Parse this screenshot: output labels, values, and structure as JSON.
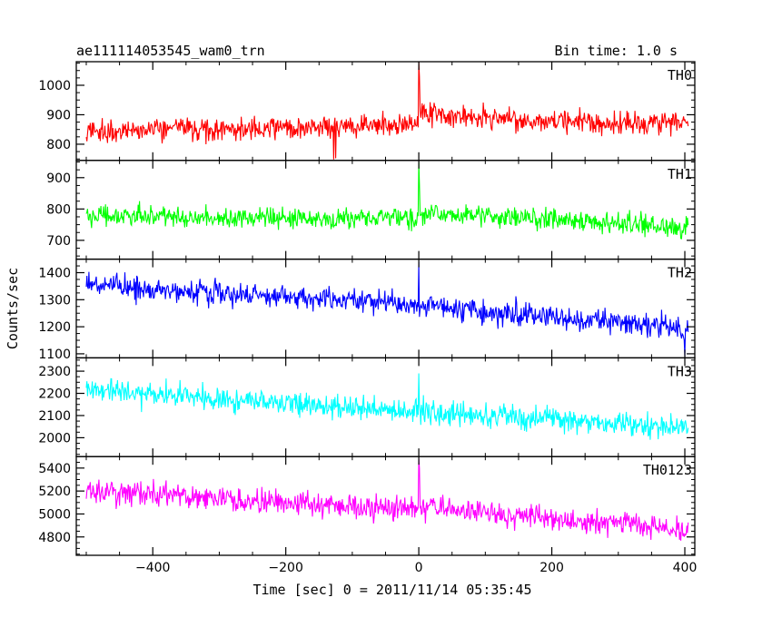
{
  "chart_data": {
    "type": "line",
    "title": "ae111114053545_wam0_trn",
    "subtitle": "Bin time: 1.0 s",
    "xlabel": "Time [sec] 0 = 2011/11/14 05:35:45",
    "ylabel": "Counts/sec",
    "xlim": [
      -515,
      415
    ],
    "x_range": [
      -500,
      405
    ],
    "x_ticks": [
      -400,
      -200,
      0,
      200,
      400
    ],
    "x_tick_labels": [
      "−400",
      "−200",
      "0",
      "200",
      "400"
    ],
    "grid": false,
    "panels": [
      {
        "name": "TH0",
        "color": "#ff0000",
        "ylim": [
          745,
          1080
        ],
        "y_ticks": [
          800,
          900,
          1000
        ],
        "y_tick_labels": [
          "800",
          "900",
          "1000"
        ],
        "noise": 38,
        "trend": [
          {
            "x": -500,
            "y": 845
          },
          {
            "x": -150,
            "y": 855
          },
          {
            "x": -2,
            "y": 868
          },
          {
            "x": 2,
            "y": 905
          },
          {
            "x": 150,
            "y": 880
          },
          {
            "x": 405,
            "y": 870
          }
        ],
        "spikes": [
          {
            "x": 0,
            "y": 1080
          },
          {
            "x": 1,
            "y": 1030
          },
          {
            "x": -128,
            "y": 748
          },
          {
            "x": -125,
            "y": 752
          }
        ]
      },
      {
        "name": "TH1",
        "color": "#00ff00",
        "ylim": [
          640,
          955
        ],
        "y_ticks": [
          700,
          800,
          900
        ],
        "y_tick_labels": [
          "700",
          "800",
          "900"
        ],
        "noise": 34,
        "trend": [
          {
            "x": -500,
            "y": 778
          },
          {
            "x": -2,
            "y": 768
          },
          {
            "x": 2,
            "y": 785
          },
          {
            "x": 405,
            "y": 742
          }
        ],
        "spikes": [
          {
            "x": 0,
            "y": 950
          },
          {
            "x": 1,
            "y": 880
          }
        ]
      },
      {
        "name": "TH2",
        "color": "#0000ff",
        "ylim": [
          1085,
          1450
        ],
        "y_ticks": [
          1100,
          1200,
          1300,
          1400
        ],
        "y_tick_labels": [
          "1100",
          "1200",
          "1300",
          "1400"
        ],
        "noise": 45,
        "trend": [
          {
            "x": -500,
            "y": 1355
          },
          {
            "x": -2,
            "y": 1285
          },
          {
            "x": 2,
            "y": 1275
          },
          {
            "x": 405,
            "y": 1195
          }
        ],
        "spikes": [
          {
            "x": 0,
            "y": 1440
          },
          {
            "x": 400,
            "y": 1090
          }
        ]
      },
      {
        "name": "TH3",
        "color": "#00ffff",
        "ylim": [
          1915,
          2360
        ],
        "y_ticks": [
          2000,
          2100,
          2200,
          2300
        ],
        "y_tick_labels": [
          "2000",
          "2100",
          "2200",
          "2300"
        ],
        "noise": 55,
        "trend": [
          {
            "x": -500,
            "y": 2215
          },
          {
            "x": 0,
            "y": 2120
          },
          {
            "x": 405,
            "y": 2040
          }
        ],
        "spikes": [
          {
            "x": 0,
            "y": 2290
          }
        ]
      },
      {
        "name": "TH0123",
        "color": "#ff00ff",
        "ylim": [
          4640,
          5500
        ],
        "y_ticks": [
          4800,
          5000,
          5200,
          5400
        ],
        "y_tick_labels": [
          "4800",
          "5000",
          "5200",
          "5400"
        ],
        "noise": 105,
        "trend": [
          {
            "x": -500,
            "y": 5200
          },
          {
            "x": -2,
            "y": 5040
          },
          {
            "x": 2,
            "y": 5060
          },
          {
            "x": 405,
            "y": 4860
          }
        ],
        "spikes": [
          {
            "x": 0,
            "y": 5480
          },
          {
            "x": 1,
            "y": 5400
          }
        ]
      }
    ]
  }
}
